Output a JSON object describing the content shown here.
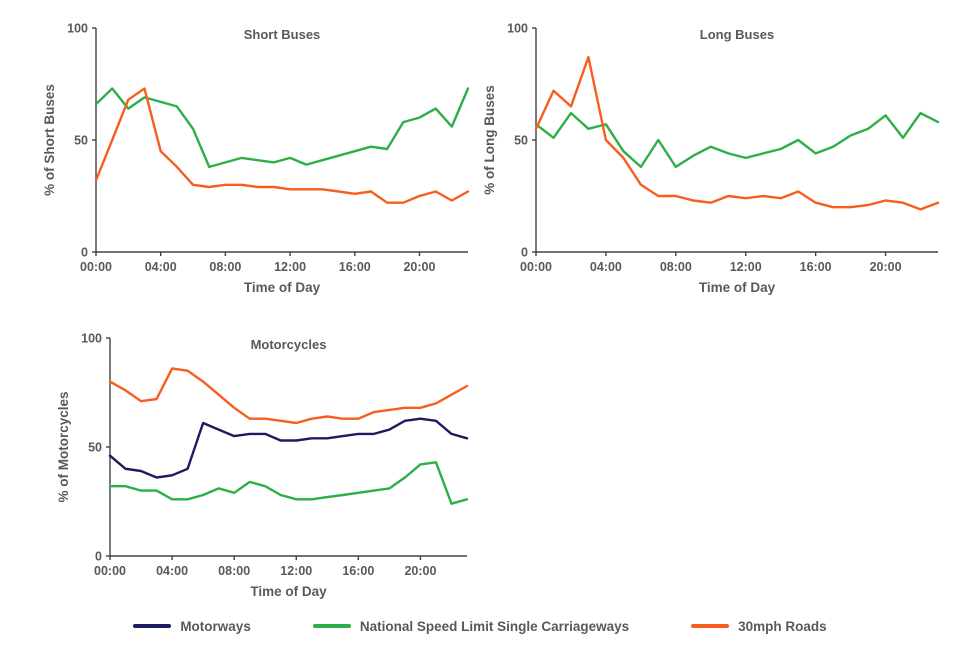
{
  "palette": {
    "motorways": "#1c1c62",
    "nsl_single_carriageways": "#2eae49",
    "thirty_mph_roads": "#f75d1f",
    "axis_text": "#595959",
    "axis_line": "#404040"
  },
  "legend": {
    "items": [
      {
        "label": "Motorways",
        "color_key": "motorways"
      },
      {
        "label": "National Speed Limit Single Carriageways",
        "color_key": "nsl_single_carriageways"
      },
      {
        "label": "30mph Roads",
        "color_key": "thirty_mph_roads"
      }
    ]
  },
  "chart_data": [
    {
      "id": "short-buses",
      "type": "line",
      "title": "Short Buses",
      "xlabel": "Time of Day",
      "ylabel": "% of Short Buses",
      "ylim": [
        0,
        100
      ],
      "yticks": [
        0,
        50,
        100
      ],
      "x_hours": [
        0,
        1,
        2,
        3,
        4,
        5,
        6,
        7,
        8,
        9,
        10,
        11,
        12,
        13,
        14,
        15,
        16,
        17,
        18,
        19,
        20,
        21,
        22,
        23
      ],
      "xticks": [
        {
          "h": 0,
          "label": "00:00"
        },
        {
          "h": 4,
          "label": "04:00"
        },
        {
          "h": 8,
          "label": "08:00"
        },
        {
          "h": 12,
          "label": "12:00"
        },
        {
          "h": 16,
          "label": "16:00"
        },
        {
          "h": 20,
          "label": "20:00"
        }
      ],
      "series": [
        {
          "name": "National Speed Limit Single Carriageways",
          "color_key": "nsl_single_carriageways",
          "values": [
            66,
            73,
            64,
            69,
            67,
            65,
            55,
            38,
            40,
            42,
            41,
            40,
            42,
            39,
            41,
            43,
            45,
            47,
            46,
            58,
            60,
            64,
            56,
            73
          ]
        },
        {
          "name": "30mph Roads",
          "color_key": "thirty_mph_roads",
          "values": [
            32,
            50,
            68,
            73,
            45,
            38,
            30,
            29,
            30,
            30,
            29,
            29,
            28,
            28,
            28,
            27,
            26,
            27,
            22,
            22,
            25,
            27,
            23,
            27
          ]
        }
      ]
    },
    {
      "id": "long-buses",
      "type": "line",
      "title": "Long Buses",
      "xlabel": "Time of Day",
      "ylabel": "% of Long Buses",
      "ylim": [
        0,
        100
      ],
      "yticks": [
        0,
        50,
        100
      ],
      "x_hours": [
        0,
        1,
        2,
        3,
        4,
        5,
        6,
        7,
        8,
        9,
        10,
        11,
        12,
        13,
        14,
        15,
        16,
        17,
        18,
        19,
        20,
        21,
        22,
        23
      ],
      "xticks": [
        {
          "h": 0,
          "label": "00:00"
        },
        {
          "h": 4,
          "label": "04:00"
        },
        {
          "h": 8,
          "label": "08:00"
        },
        {
          "h": 12,
          "label": "12:00"
        },
        {
          "h": 16,
          "label": "16:00"
        },
        {
          "h": 20,
          "label": "20:00"
        }
      ],
      "series": [
        {
          "name": "National Speed Limit Single Carriageways",
          "color_key": "nsl_single_carriageways",
          "values": [
            57,
            51,
            62,
            55,
            57,
            45,
            38,
            50,
            38,
            43,
            47,
            44,
            42,
            44,
            46,
            50,
            44,
            47,
            52,
            55,
            61,
            51,
            62,
            58
          ]
        },
        {
          "name": "30mph Roads",
          "color_key": "thirty_mph_roads",
          "values": [
            55,
            72,
            65,
            87,
            50,
            42,
            30,
            25,
            25,
            23,
            22,
            25,
            24,
            25,
            24,
            27,
            22,
            20,
            20,
            21,
            23,
            22,
            19,
            22
          ]
        }
      ]
    },
    {
      "id": "motorcycles",
      "type": "line",
      "title": "Motorcycles",
      "xlabel": "Time of Day",
      "ylabel": "% of Motorcycles",
      "ylim": [
        0,
        100
      ],
      "yticks": [
        0,
        50,
        100
      ],
      "x_hours": [
        0,
        1,
        2,
        3,
        4,
        5,
        6,
        7,
        8,
        9,
        10,
        11,
        12,
        13,
        14,
        15,
        16,
        17,
        18,
        19,
        20,
        21,
        22,
        23
      ],
      "xticks": [
        {
          "h": 0,
          "label": "00:00"
        },
        {
          "h": 4,
          "label": "04:00"
        },
        {
          "h": 8,
          "label": "08:00"
        },
        {
          "h": 12,
          "label": "12:00"
        },
        {
          "h": 16,
          "label": "16:00"
        },
        {
          "h": 20,
          "label": "20:00"
        }
      ],
      "series": [
        {
          "name": "Motorways",
          "color_key": "motorways",
          "values": [
            46,
            40,
            39,
            36,
            37,
            40,
            61,
            58,
            55,
            56,
            56,
            53,
            53,
            54,
            54,
            55,
            56,
            56,
            58,
            62,
            63,
            62,
            56,
            54
          ]
        },
        {
          "name": "National Speed Limit Single Carriageways",
          "color_key": "nsl_single_carriageways",
          "values": [
            32,
            32,
            30,
            30,
            26,
            26,
            28,
            31,
            29,
            34,
            32,
            28,
            26,
            26,
            27,
            28,
            29,
            30,
            31,
            36,
            42,
            43,
            24,
            26
          ]
        },
        {
          "name": "30mph Roads",
          "color_key": "thirty_mph_roads",
          "values": [
            80,
            76,
            71,
            72,
            86,
            85,
            80,
            74,
            68,
            63,
            63,
            62,
            61,
            63,
            64,
            63,
            63,
            66,
            67,
            68,
            68,
            70,
            74,
            78
          ]
        }
      ]
    }
  ]
}
